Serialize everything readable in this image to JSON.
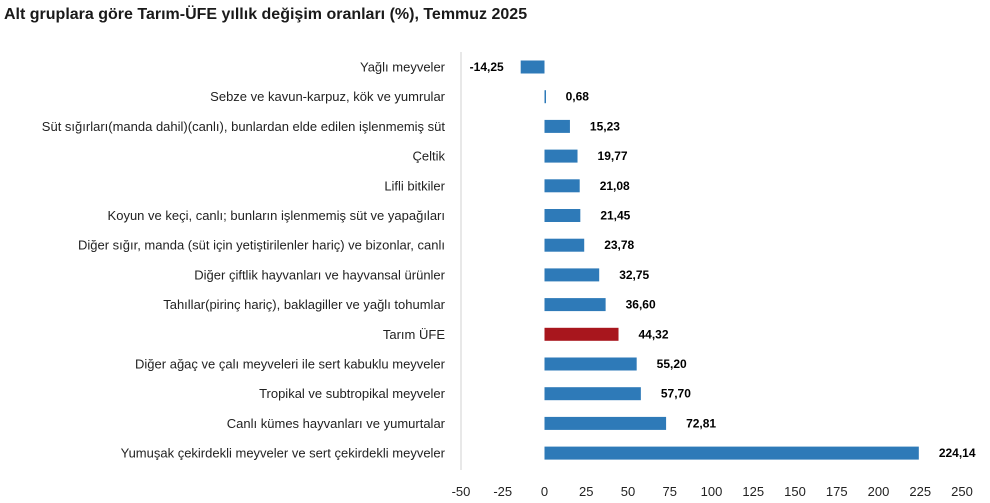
{
  "title": "Alt gruplara göre Tarım-ÜFE yıllık değişim oranları (%), Temmuz 2025",
  "chart_data": {
    "type": "bar",
    "orientation": "horizontal",
    "title": "Alt gruplara göre Tarım-ÜFE yıllık değişim oranları (%), Temmuz 2025",
    "xlabel": "",
    "ylabel": "",
    "xlim": [
      -50,
      250
    ],
    "xticks": [
      -50,
      -25,
      0,
      25,
      50,
      75,
      100,
      125,
      150,
      175,
      200,
      225,
      250
    ],
    "grid": false,
    "colors": {
      "default": "#2e7ab8",
      "highlight": "#a8161d"
    },
    "highlight_category": "Tarım ÜFE",
    "categories": [
      "Yağlı meyveler",
      "Sebze ve kavun-karpuz, kök ve yumrular",
      "Süt sığırları(manda dahil)(canlı), bunlardan elde edilen işlenmemiş süt",
      "Çeltik",
      "Lifli bitkiler",
      "Koyun ve keçi, canlı; bunların işlenmemiş süt ve yapağıları",
      "Diğer sığır, manda (süt için yetiştirilenler hariç) ve bizonlar, canlı",
      "Diğer çiftlik hayvanları ve hayvansal ürünler",
      "Tahıllar(pirinç hariç), baklagiller ve yağlı tohumlar",
      "Tarım ÜFE",
      "Diğer ağaç ve çalı meyveleri ile sert kabuklu meyveler",
      "Tropikal ve subtropikal meyveler",
      "Canlı kümes hayvanları ve yumurtalar",
      "Yumuşak çekirdekli meyveler ve sert çekirdekli meyveler"
    ],
    "values": [
      -14.25,
      0.68,
      15.23,
      19.77,
      21.08,
      21.45,
      23.78,
      32.75,
      36.6,
      44.32,
      55.2,
      57.7,
      72.81,
      224.14
    ],
    "value_labels": [
      "-14,25",
      "0,68",
      "15,23",
      "19,77",
      "21,08",
      "21,45",
      "23,78",
      "32,75",
      "36,60",
      "44,32",
      "55,20",
      "57,70",
      "72,81",
      "224,14"
    ]
  }
}
